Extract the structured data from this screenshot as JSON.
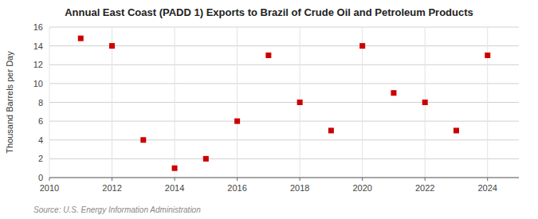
{
  "chart_data": {
    "type": "scatter",
    "title": "Annual East Coast (PADD 1) Exports to Brazil of Crude Oil and Petroleum Products",
    "ylabel": "Thousand Barrels per Day",
    "source": "Source: U.S. Energy Information Administration",
    "x": [
      2011,
      2012,
      2013,
      2014,
      2015,
      2016,
      2017,
      2018,
      2019,
      2020,
      2021,
      2022,
      2023,
      2024
    ],
    "values": [
      14.8,
      14.0,
      4.0,
      1.0,
      2.0,
      6.0,
      13.0,
      8.0,
      5.0,
      14.0,
      9.0,
      8.0,
      5.0,
      13.0
    ],
    "color": "#cc0000",
    "marker": "square",
    "xlim": [
      2010,
      2025
    ],
    "ylim": [
      0,
      16
    ],
    "xticks": [
      2010,
      2012,
      2014,
      2016,
      2018,
      2020,
      2022,
      2024
    ],
    "yticks": [
      0,
      2,
      4,
      6,
      8,
      10,
      12,
      14,
      16
    ],
    "grid": true
  }
}
